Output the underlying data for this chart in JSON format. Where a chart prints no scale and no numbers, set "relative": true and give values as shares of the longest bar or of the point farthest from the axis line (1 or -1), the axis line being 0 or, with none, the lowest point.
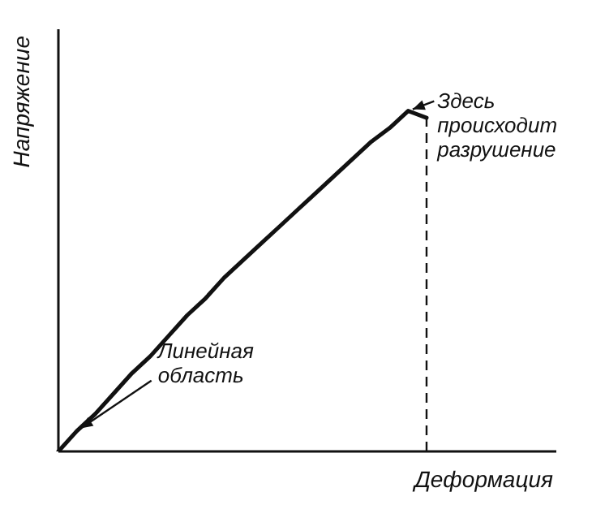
{
  "chart_data": {
    "type": "line",
    "relative": true,
    "xlabel": "Деформация",
    "ylabel": "Напряжение",
    "categories": [
      null,
      null,
      null,
      null,
      null,
      null,
      null,
      null,
      null,
      null,
      null,
      null,
      null,
      null,
      null,
      null,
      null,
      null,
      null,
      null,
      null
    ],
    "series": [
      {
        "color": "#111111",
        "values": [
          0,
          0.06,
          0.11,
          0.17,
          0.23,
          0.28,
          0.34,
          0.4,
          0.45,
          0.51,
          0.56,
          0.61,
          0.66,
          0.71,
          0.76,
          0.81,
          0.86,
          0.91,
          0.95,
          1,
          0.98
        ]
      }
    ],
    "ref_lines": [
      {
        "axis": "x",
        "line_style": "dashed",
        "color": "#111111"
      }
    ],
    "annotations": [
      "Здесь происходит разрушение",
      "Линейная область"
    ],
    "grid": false,
    "legend": false,
    "marker": "none",
    "line_style": "solid"
  }
}
